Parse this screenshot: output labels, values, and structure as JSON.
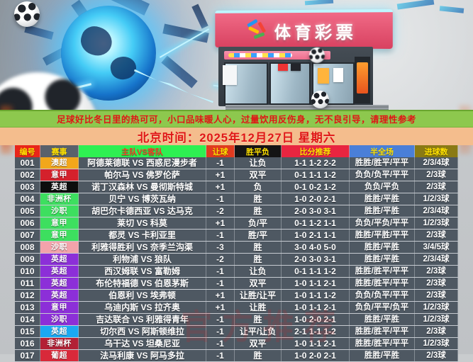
{
  "hero": {
    "store_sign": "体育彩票",
    "watermark": "官方推荐"
  },
  "banners": {
    "tip": "足球好比冬日里的热可可，小口品味暖人心，过量饮用反伤身，无不良引导，请理性参考",
    "date": "北京时间：2025年12月27日 星期六"
  },
  "colors": {
    "tip_bg": "#8dc84e",
    "date_bg": "#f4bd8d",
    "banner_text": "#e01616",
    "row_bg": "#4e5862",
    "row_text": "#ffffff"
  },
  "table": {
    "headers": [
      {
        "label": "编号",
        "bg": "#e8251a",
        "fg": "#ffe100"
      },
      {
        "label": "赛事",
        "bg": "#59616b",
        "fg": "#ffe100"
      },
      {
        "label": "主队VS客队",
        "bg": "#2ef052",
        "fg": "#f04028"
      },
      {
        "label": "让球",
        "bg": "#e03a1f",
        "fg": "#ffe100"
      },
      {
        "label": "胜平负",
        "bg": "#141414",
        "fg": "#ffe100"
      },
      {
        "label": "比分推荐",
        "bg": "#e82540",
        "fg": "#ffe100"
      },
      {
        "label": "半全场",
        "bg": "#4a7fd8",
        "fg": "#ffe100"
      },
      {
        "label": "进球数",
        "bg": "#8a7a14",
        "fg": "#ffe100"
      }
    ],
    "rows": [
      {
        "id": "001",
        "league": "澳超",
        "league_color": "#f2a71b",
        "match": "阿德莱德联 VS 西惑尼漫步者",
        "handicap": "-1",
        "wdl": "让负",
        "score": "1-1 1-2 2-2",
        "half_full": "胜胜/胜平/平平",
        "goals": "2/3/4球"
      },
      {
        "id": "002",
        "league": "意甲",
        "league_color": "#d4212c",
        "match": "帕尔马 VS 佛罗伦萨",
        "handicap": "+1",
        "wdl": "双平",
        "score": "0-1 1-1 1-2",
        "half_full": "负负/负平/平平",
        "goals": "2/3球"
      },
      {
        "id": "003",
        "league": "英超",
        "league_color": "#0d0d0d",
        "match": "诺丁汉森林 VS 曼彻斯特城",
        "handicap": "+1",
        "wdl": "负",
        "score": "0-1 0-2 1-2",
        "half_full": "负负/平负",
        "goals": "2/3球"
      },
      {
        "id": "004",
        "league": "非洲杯",
        "league_color": "#3ddf5f",
        "match": "贝宁 VS 博茨瓦纳",
        "handicap": "-1",
        "wdl": "胜",
        "score": "1-0 2-0 2-1",
        "half_full": "胜胜/平胜",
        "goals": "1/2/3球"
      },
      {
        "id": "005",
        "league": "沙职",
        "league_color": "#3ddf5f",
        "match": "胡巴尔卡德西亚 VS 达马克",
        "handicap": "-2",
        "wdl": "胜",
        "score": "2-0 3-0 3-1",
        "half_full": "胜胜/平胜",
        "goals": "2/3/4球"
      },
      {
        "id": "006",
        "league": "意甲",
        "league_color": "#3ddf5f",
        "match": "莱切 VS 科莫",
        "handicap": "+1",
        "wdl": "负/平",
        "score": "0-1 1-2 1-1",
        "half_full": "负负/平负/平平",
        "goals": "1/2/3球"
      },
      {
        "id": "007",
        "league": "意甲",
        "league_color": "#3ddf5f",
        "match": "都灵 VS 卡利亚里",
        "handicap": "-1",
        "wdl": "胜/平",
        "score": "1-0 2-1 1-1",
        "half_full": "胜胜/平胜/平平",
        "goals": "2/3球"
      },
      {
        "id": "008",
        "league": "沙职",
        "league_color": "#f2a3ab",
        "match": "利雅得胜利 VS 奈季兰沟渠",
        "handicap": "-3",
        "wdl": "胜",
        "score": "3-0 4-0 5-0",
        "half_full": "胜胜/平胜",
        "goals": "3/4/5球"
      },
      {
        "id": "009",
        "league": "英超",
        "league_color": "#8c2fd8",
        "match": "利物浦 VS 狼队",
        "handicap": "-2",
        "wdl": "胜",
        "score": "2-0 3-0 3-1",
        "half_full": "胜胜/平胜",
        "goals": "2/3/4球"
      },
      {
        "id": "010",
        "league": "英超",
        "league_color": "#8c2fd8",
        "match": "西汉姆联 VS 富勒姆",
        "handicap": "-1",
        "wdl": "让负",
        "score": "0-1 1-1 1-2",
        "half_full": "胜胜/胜平/平平",
        "goals": "2/3球"
      },
      {
        "id": "011",
        "league": "英超",
        "league_color": "#8c2fd8",
        "match": "布伦特福德 VS 伯恩茅斯",
        "handicap": "-1",
        "wdl": "双平",
        "score": "1-0 1-1 2-1",
        "half_full": "胜胜/胜平/平平",
        "goals": "2/3球"
      },
      {
        "id": "012",
        "league": "英超",
        "league_color": "#8c2fd8",
        "match": "伯恩利 VS 埃弗顿",
        "handicap": "+1",
        "wdl": "让胜/让平",
        "score": "1-0 1-1 1-2",
        "half_full": "负负/负平/平平",
        "goals": "2/3球"
      },
      {
        "id": "013",
        "league": "意甲",
        "league_color": "#8c2fd8",
        "match": "乌迪内斯 VS 拉齐奥",
        "handicap": "+1",
        "wdl": "让胜",
        "score": "1-0 1-1 2-1",
        "half_full": "负负/平平/负平",
        "goals": "1/2/3球"
      },
      {
        "id": "014",
        "league": "沙职",
        "league_color": "#8c2fd8",
        "match": "吉达联合 VS 利雅得青年",
        "handicap": "-1",
        "wdl": "胜",
        "score": "1-0 2-0 2-1",
        "half_full": "胜胜/平胜",
        "goals": "1/2/3球"
      },
      {
        "id": "015",
        "league": "英超",
        "league_color": "#1aa9f2",
        "match": "切尔西 VS 阿斯顿维拉",
        "handicap": "-1",
        "wdl": "让平/让负",
        "score": "2-1 1-1 1-2",
        "half_full": "胜胜/胜平/平平",
        "goals": "2/3球"
      },
      {
        "id": "016",
        "league": "非洲杯",
        "league_color": "#b32035",
        "match": "乌干达 VS 坦桑尼亚",
        "handicap": "-1",
        "wdl": "双平",
        "score": "1-0 1-1 2-1",
        "half_full": "胜胜/胜平/平平",
        "goals": "1/2/3球"
      },
      {
        "id": "017",
        "league": "葡超",
        "league_color": "#d8293a",
        "match": "法马利康 VS 阿马多拉",
        "handicap": "-1",
        "wdl": "胜",
        "score": "1-0 2-0 2-1",
        "half_full": "胜胜/平胜",
        "goals": "2/3球"
      }
    ]
  }
}
